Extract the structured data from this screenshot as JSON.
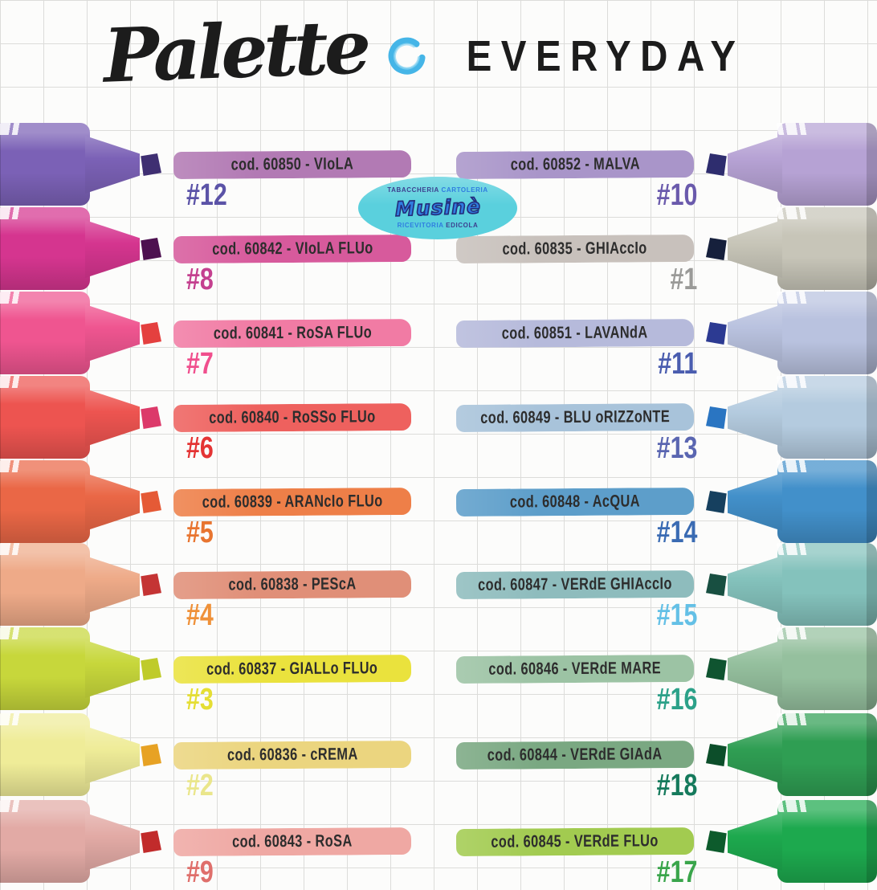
{
  "header": {
    "script_word": "Palette",
    "caps_word": "EVERYDAY",
    "ring_color": "#45b5e7"
  },
  "badge": {
    "top_left": "TABACCHERIA",
    "top_right": "CARTOLERIA",
    "name": "Musinè",
    "bottom_left": "RICEVITORIA",
    "bottom_right": "EDICOLA",
    "bg_color": "#5ad0dd"
  },
  "pens": [
    {
      "side": "left",
      "row": 0,
      "label": "cod. 60850 - VIoLA",
      "number": "#12",
      "colors": {
        "body": "#7b61b6",
        "tip": "#3f2f72",
        "stroke": "#b27ab4",
        "num": "#5b53a7"
      }
    },
    {
      "side": "right",
      "row": 0,
      "label": "cod. 60852 - MALVA",
      "number": "#10",
      "colors": {
        "body": "#b6a2d4",
        "tip": "#2e2d6e",
        "stroke": "#a995c9",
        "num": "#6a5aac"
      }
    },
    {
      "side": "left",
      "row": 1,
      "label": "cod. 60842 - VIoLA FLUo",
      "number": "#8",
      "colors": {
        "body": "#d5358f",
        "tip": "#4d1150",
        "stroke": "#d75a9c",
        "num": "#c4408f"
      }
    },
    {
      "side": "right",
      "row": 1,
      "label": "cod. 60835 - GHIAccIo",
      "number": "#1",
      "colors": {
        "body": "#c7c5b8",
        "tip": "#16203c",
        "stroke": "#c8c1bc",
        "num": "#9a9a98"
      }
    },
    {
      "side": "left",
      "row": 2,
      "label": "cod. 60841 - RoSA FLUo",
      "number": "#7",
      "colors": {
        "body": "#ef5590",
        "tip": "#e4403f",
        "stroke": "#f17ba4",
        "num": "#f04f8d"
      }
    },
    {
      "side": "right",
      "row": 2,
      "label": "cod. 60851 - LAVANdA",
      "number": "#11",
      "colors": {
        "body": "#b9c2df",
        "tip": "#2c3a92",
        "stroke": "#b6badb",
        "num": "#4a5daf"
      }
    },
    {
      "side": "left",
      "row": 3,
      "label": "cod. 60840 - RoSSo FLUo",
      "number": "#6",
      "colors": {
        "body": "#ed5450",
        "tip": "#dc3a6a",
        "stroke": "#ee615e",
        "num": "#e43434"
      }
    },
    {
      "side": "right",
      "row": 3,
      "label": "cod. 60849 - BLU oRIZZoNTE",
      "number": "#13",
      "colors": {
        "body": "#b4cbdf",
        "tip": "#2a75c2",
        "stroke": "#a8c3da",
        "num": "#5a66b1"
      }
    },
    {
      "side": "left",
      "row": 4,
      "label": "cod. 60839 - ARANcIo FLUo",
      "number": "#5",
      "colors": {
        "body": "#ea6746",
        "tip": "#e55a36",
        "stroke": "#ee7f48",
        "num": "#e87530"
      }
    },
    {
      "side": "right",
      "row": 4,
      "label": "cod. 60848 - AcQUA",
      "number": "#14",
      "colors": {
        "body": "#4290ca",
        "tip": "#16405f",
        "stroke": "#5d9eca",
        "num": "#3a6bb3"
      }
    },
    {
      "side": "left",
      "row": 5,
      "label": "cod. 60838 - PEScA",
      "number": "#4",
      "colors": {
        "body": "#eeaa88",
        "tip": "#c43434",
        "stroke": "#e08f78",
        "num": "#ef9139"
      }
    },
    {
      "side": "right",
      "row": 5,
      "label": "cod. 60847 - VERdE GHIAccIo",
      "number": "#15",
      "colors": {
        "body": "#84c2bc",
        "tip": "#184f41",
        "stroke": "#8ebcbd",
        "num": "#64c0e6"
      }
    },
    {
      "side": "left",
      "row": 6,
      "label": "cod. 60837 - GIALLo FLUo",
      "number": "#3",
      "colors": {
        "body": "#c7d73b",
        "tip": "#bfcb2a",
        "stroke": "#eae23d",
        "num": "#e5de34"
      }
    },
    {
      "side": "right",
      "row": 6,
      "label": "cod. 60846 - VERdE MARE",
      "number": "#16",
      "colors": {
        "body": "#95c09e",
        "tip": "#0f5430",
        "stroke": "#9cc3a4",
        "num": "#2ca189"
      }
    },
    {
      "side": "left",
      "row": 7,
      "label": "cod. 60836 - cREMA",
      "number": "#2",
      "colors": {
        "body": "#efec98",
        "tip": "#e7a224",
        "stroke": "#ebd57f",
        "num": "#eae68b"
      }
    },
    {
      "side": "right",
      "row": 7,
      "label": "cod. 60844 - VERdE GIAdA",
      "number": "#18",
      "colors": {
        "body": "#2f9e53",
        "tip": "#0c4e2a",
        "stroke": "#7aa882",
        "num": "#157a5c"
      }
    },
    {
      "side": "left",
      "row": 8,
      "label": "cod. 60843 - RoSA",
      "number": "#9",
      "colors": {
        "body": "#e2aaa5",
        "tip": "#c12b2b",
        "stroke": "#efa8a3",
        "num": "#df6f6b"
      }
    },
    {
      "side": "right",
      "row": 8,
      "label": "cod. 60845 - VERdE FLUo",
      "number": "#17",
      "colors": {
        "body": "#1da94e",
        "tip": "#0d5b2c",
        "stroke": "#a2cb50",
        "num": "#3aa54b"
      }
    }
  ]
}
